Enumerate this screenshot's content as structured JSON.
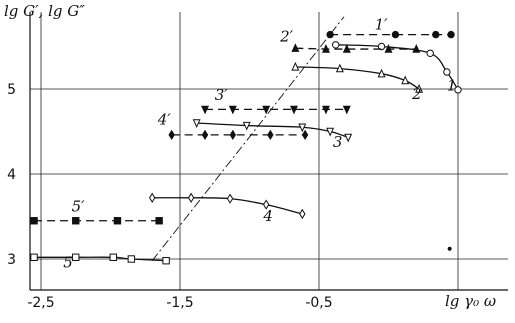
{
  "chart_data": {
    "type": "line",
    "ylabel": "lg G′, lg G″",
    "xlabel": "lg γ₀ ω",
    "x_tick_labels": [
      "-2,5",
      "-1,5",
      "-0,5"
    ],
    "y_tick_labels": [
      "3",
      "4",
      "5"
    ],
    "x_ticks": [
      -2.5,
      -1.5,
      -0.5
    ],
    "y_ticks": [
      3,
      4,
      5
    ],
    "xlim": [
      -2.55,
      0.55
    ],
    "ylim": [
      2.75,
      5.82
    ],
    "grid": true,
    "series": [
      {
        "name": "1′",
        "style": "dashed",
        "marker": "filled-circle",
        "x": [
          -0.42,
          0.05,
          0.34,
          0.45
        ],
        "y": [
          5.64,
          5.64,
          5.64,
          5.64
        ]
      },
      {
        "name": "1",
        "style": "solid",
        "marker": "open-circle",
        "x": [
          -0.38,
          -0.05,
          0.3,
          0.42,
          0.5
        ],
        "y": [
          5.52,
          5.5,
          5.42,
          5.2,
          4.99
        ]
      },
      {
        "name": "2′",
        "style": "dashed",
        "marker": "filled-triangle",
        "x": [
          -0.67,
          -0.45,
          -0.3,
          0.0,
          0.2
        ],
        "y": [
          5.48,
          5.47,
          5.47,
          5.47,
          5.47
        ]
      },
      {
        "name": "2",
        "style": "solid",
        "marker": "open-triangle",
        "x": [
          -0.67,
          -0.35,
          -0.05,
          0.12,
          0.22
        ],
        "y": [
          5.26,
          5.24,
          5.18,
          5.1,
          5.0
        ]
      },
      {
        "name": "3′",
        "style": "dashed",
        "marker": "filled-triangle-down",
        "x": [
          -1.32,
          -1.12,
          -0.88,
          -0.68,
          -0.45,
          -0.3
        ],
        "y": [
          4.76,
          4.76,
          4.76,
          4.76,
          4.76,
          4.76
        ]
      },
      {
        "name": "3",
        "style": "solid",
        "marker": "open-triangle-down",
        "x": [
          -1.38,
          -1.02,
          -0.62,
          -0.42,
          -0.29
        ],
        "y": [
          4.6,
          4.57,
          4.55,
          4.5,
          4.43
        ]
      },
      {
        "name": "4′",
        "style": "dashed",
        "marker": "filled-diamond",
        "x": [
          -1.56,
          -1.32,
          -1.12,
          -0.85,
          -0.6
        ],
        "y": [
          4.46,
          4.46,
          4.46,
          4.46,
          4.46
        ]
      },
      {
        "name": "4",
        "style": "solid",
        "marker": "open-diamond",
        "x": [
          -1.7,
          -1.42,
          -1.14,
          -0.88,
          -0.62
        ],
        "y": [
          3.72,
          3.72,
          3.71,
          3.64,
          3.53
        ]
      },
      {
        "name": "5′",
        "style": "dashed",
        "marker": "filled-square",
        "x": [
          -2.55,
          -2.25,
          -1.95,
          -1.65
        ],
        "y": [
          3.45,
          3.45,
          3.45,
          3.45
        ]
      },
      {
        "name": "5",
        "style": "solid",
        "marker": "open-square",
        "x": [
          -2.55,
          -2.25,
          -1.98,
          -1.85,
          -1.6
        ],
        "y": [
          3.02,
          3.02,
          3.02,
          3.0,
          2.98
        ]
      }
    ],
    "reference_line": {
      "style": "dash-dot",
      "x": [
        -1.7,
        -0.32
      ],
      "y": [
        2.98,
        5.85
      ]
    },
    "extra_points": [
      {
        "marker": "filled-circle",
        "x": 0.44,
        "y": 3.12
      }
    ],
    "curve_labels": [
      {
        "text": "1′",
        "x": -0.1,
        "y": 5.7
      },
      {
        "text": "1",
        "x": 0.42,
        "y": 4.98
      },
      {
        "text": "2′",
        "x": -0.78,
        "y": 5.56
      },
      {
        "text": "2",
        "x": 0.17,
        "y": 4.88
      },
      {
        "text": "3′",
        "x": -1.25,
        "y": 4.87
      },
      {
        "text": "3",
        "x": -0.4,
        "y": 4.32
      },
      {
        "text": "4′",
        "x": -1.66,
        "y": 4.58
      },
      {
        "text": "4",
        "x": -0.9,
        "y": 3.45
      },
      {
        "text": "5′",
        "x": -2.28,
        "y": 3.56
      },
      {
        "text": "5",
        "x": -2.34,
        "y": 2.9
      }
    ]
  }
}
